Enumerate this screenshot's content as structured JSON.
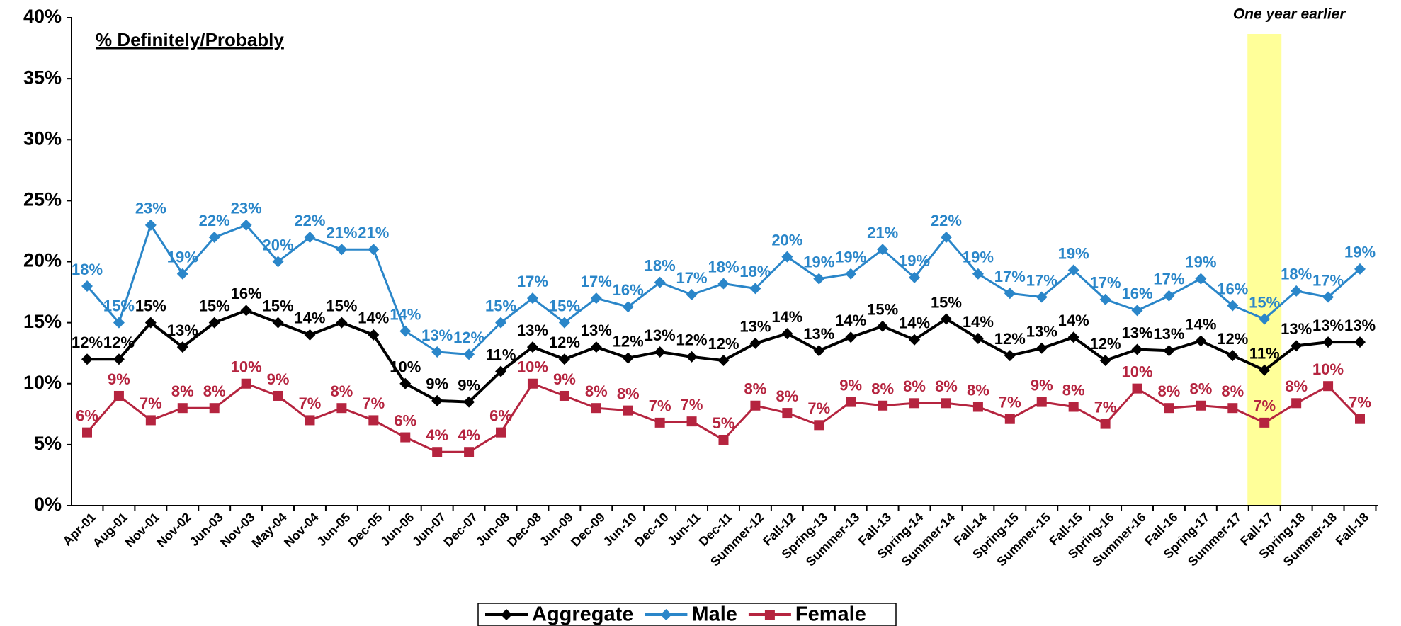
{
  "chart_data": {
    "type": "line",
    "title": "% Definitely/Probably",
    "annotation": "One year earlier",
    "highlight_category": "Fall-17",
    "categories": [
      "Apr-01",
      "Aug-01",
      "Nov-01",
      "Nov-02",
      "Jun-03",
      "Nov-03",
      "May-04",
      "Nov-04",
      "Jun-05",
      "Dec-05",
      "Jun-06",
      "Jun-07",
      "Dec-07",
      "Jun-08",
      "Dec-08",
      "Jun-09",
      "Dec-09",
      "Jun-10",
      "Dec-10",
      "Jun-11",
      "Dec-11",
      "Summer-12",
      "Fall-12",
      "Spring-13",
      "Summer-13",
      "Fall-13",
      "Spring-14",
      "Summer-14",
      "Fall-14",
      "Spring-15",
      "Summer-15",
      "Fall-15",
      "Spring-16",
      "Summer-16",
      "Fall-16",
      "Spring-17",
      "Summer-17",
      "Fall-17",
      "Spring-18",
      "Summer-18",
      "Fall-18"
    ],
    "series": [
      {
        "name": "Aggregate",
        "color": "#000000",
        "marker": "diamond",
        "values": [
          12,
          12,
          15,
          13,
          15,
          16,
          15,
          14,
          15,
          14,
          10,
          8.6,
          8.5,
          11,
          13,
          12,
          13,
          12.1,
          12.6,
          12.2,
          11.9,
          13.3,
          14.1,
          12.7,
          13.8,
          14.7,
          13.6,
          15.3,
          13.7,
          12.3,
          12.9,
          13.8,
          11.9,
          12.8,
          12.7,
          13.5,
          12.3,
          11.1,
          13.1,
          13.4,
          13.4
        ],
        "value_labels": [
          "12%",
          "12%",
          "15%",
          "13%",
          "15%",
          "16%",
          "15%",
          "14%",
          "15%",
          "14%",
          "10%",
          "9%",
          "9%",
          "11%",
          "13%",
          "12%",
          "13%",
          "12%",
          "13%",
          "12%",
          "12%",
          "13%",
          "14%",
          "13%",
          "14%",
          "15%",
          "14%",
          "15%",
          "14%",
          "12%",
          "13%",
          "14%",
          "12%",
          "13%",
          "13%",
          "14%",
          "12%",
          "11%",
          "13%",
          "13%",
          "13%"
        ]
      },
      {
        "name": "Male",
        "color": "#2a86c9",
        "marker": "diamond",
        "values": [
          18,
          15,
          23,
          19,
          22,
          23,
          20,
          22,
          21,
          21,
          14.3,
          12.6,
          12.4,
          15,
          17,
          15,
          17,
          16.3,
          18.3,
          17.3,
          18.2,
          17.8,
          20.4,
          18.6,
          19,
          21,
          18.7,
          22,
          19,
          17.4,
          17.1,
          19.3,
          16.9,
          16,
          17.2,
          18.6,
          16.4,
          15.3,
          17.6,
          17.1,
          19.4
        ],
        "value_labels": [
          "18%",
          "15%",
          "23%",
          "19%",
          "22%",
          "23%",
          "20%",
          "22%",
          "21%",
          "21%",
          "14%",
          "13%",
          "12%",
          "15%",
          "17%",
          "15%",
          "17%",
          "16%",
          "18%",
          "17%",
          "18%",
          "18%",
          "20%",
          "19%",
          "19%",
          "21%",
          "19%",
          "22%",
          "19%",
          "17%",
          "17%",
          "19%",
          "17%",
          "16%",
          "17%",
          "19%",
          "16%",
          "15%",
          "18%",
          "17%",
          "19%"
        ]
      },
      {
        "name": "Female",
        "color": "#b5243f",
        "marker": "square",
        "values": [
          6,
          9,
          7,
          8,
          8,
          10,
          9,
          7,
          8,
          7,
          5.6,
          4.4,
          4.4,
          6,
          10,
          9,
          8,
          7.8,
          6.8,
          6.9,
          5.4,
          8.2,
          7.6,
          6.6,
          8.5,
          8.2,
          8.4,
          8.4,
          8.1,
          7.1,
          8.5,
          8.1,
          6.7,
          9.6,
          8,
          8.2,
          8,
          6.8,
          8.4,
          9.8,
          7.1
        ],
        "value_labels": [
          "6%",
          "9%",
          "7%",
          "8%",
          "8%",
          "10%",
          "9%",
          "7%",
          "8%",
          "7%",
          "6%",
          "4%",
          "4%",
          "6%",
          "10%",
          "9%",
          "8%",
          "8%",
          "7%",
          "7%",
          "5%",
          "8%",
          "8%",
          "7%",
          "9%",
          "8%",
          "8%",
          "8%",
          "8%",
          "7%",
          "9%",
          "8%",
          "7%",
          "10%",
          "8%",
          "8%",
          "8%",
          "7%",
          "8%",
          "10%",
          "7%"
        ]
      }
    ],
    "ylim": [
      0,
      40
    ],
    "yticks": [
      {
        "value": 0,
        "label": "0%"
      },
      {
        "value": 5,
        "label": "5%"
      },
      {
        "value": 10,
        "label": "10%"
      },
      {
        "value": 15,
        "label": "15%"
      },
      {
        "value": 20,
        "label": "20%"
      },
      {
        "value": 25,
        "label": "25%"
      },
      {
        "value": 30,
        "label": "30%"
      },
      {
        "value": 35,
        "label": "35%"
      },
      {
        "value": 40,
        "label": "40%"
      }
    ],
    "grid": false,
    "legend": "bottom"
  }
}
